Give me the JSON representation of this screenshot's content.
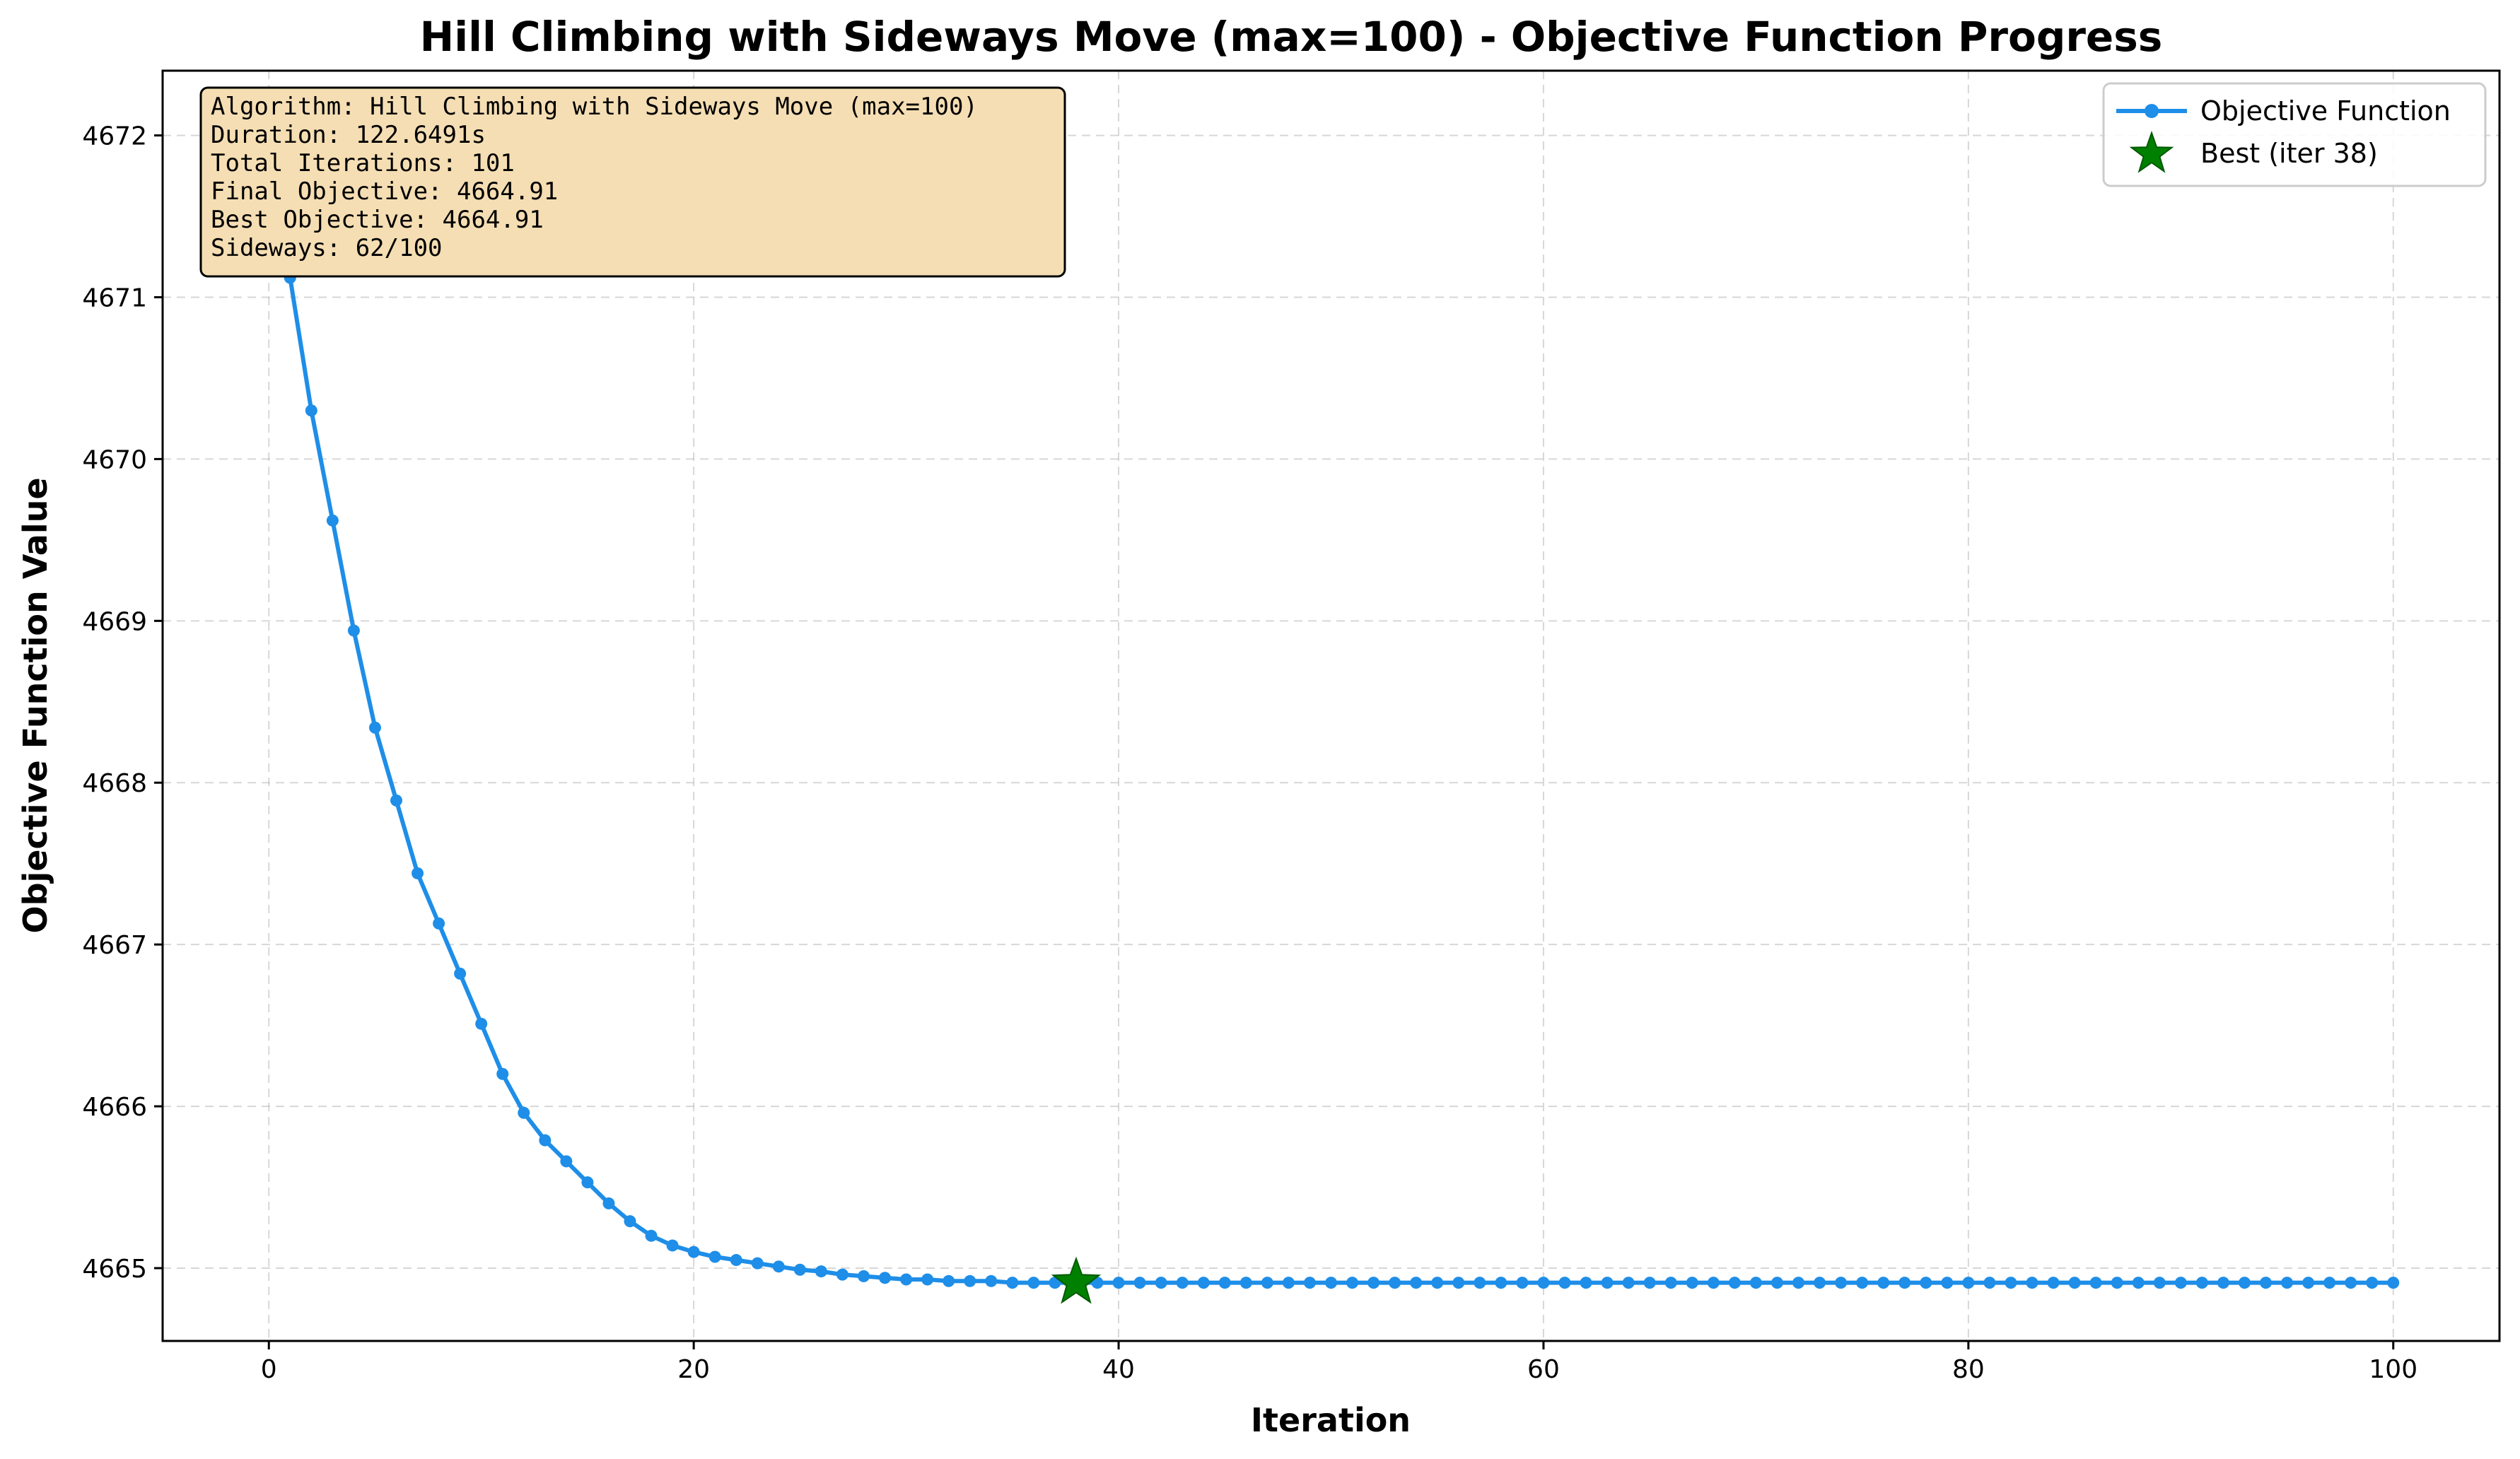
{
  "chart_data": {
    "type": "line",
    "title": "Hill Climbing with Sideways Move (max=100) - Objective Function Progress",
    "xlabel": "Iteration",
    "ylabel": "Objective Function Value",
    "xlim": [
      -5,
      105
    ],
    "ylim": [
      4664.55,
      4672.4
    ],
    "x_ticks": [
      0,
      20,
      40,
      60,
      80,
      100
    ],
    "y_ticks": [
      4665,
      4666,
      4667,
      4668,
      4669,
      4670,
      4671,
      4672
    ],
    "grid": true,
    "legend_position": "top-right",
    "series": [
      {
        "name": "Objective Function",
        "color": "#1e8ee8",
        "marker": "circle",
        "x": [
          0,
          1,
          2,
          3,
          4,
          5,
          6,
          7,
          8,
          9,
          10,
          11,
          12,
          13,
          14,
          15,
          16,
          17,
          18,
          19,
          20,
          21,
          22,
          23,
          24,
          25,
          26,
          27,
          28,
          29,
          30,
          31,
          32,
          33,
          34,
          35,
          36,
          37,
          38,
          39,
          40,
          41,
          42,
          43,
          44,
          45,
          46,
          47,
          48,
          49,
          50,
          51,
          52,
          53,
          54,
          55,
          56,
          57,
          58,
          59,
          60,
          61,
          62,
          63,
          64,
          65,
          66,
          67,
          68,
          69,
          70,
          71,
          72,
          73,
          74,
          75,
          76,
          77,
          78,
          79,
          80,
          81,
          82,
          83,
          84,
          85,
          86,
          87,
          88,
          89,
          90,
          91,
          92,
          93,
          94,
          95,
          96,
          97,
          98,
          99,
          100
        ],
        "values": [
          4672.05,
          4671.12,
          4670.3,
          4669.62,
          4668.94,
          4668.34,
          4667.89,
          4667.44,
          4667.13,
          4666.82,
          4666.51,
          4666.2,
          4665.96,
          4665.79,
          4665.66,
          4665.53,
          4665.4,
          4665.29,
          4665.2,
          4665.14,
          4665.1,
          4665.07,
          4665.05,
          4665.03,
          4665.01,
          4664.99,
          4664.98,
          4664.96,
          4664.95,
          4664.94,
          4664.93,
          4664.93,
          4664.92,
          4664.92,
          4664.92,
          4664.91,
          4664.91,
          4664.91,
          4664.91,
          4664.91,
          4664.91,
          4664.91,
          4664.91,
          4664.91,
          4664.91,
          4664.91,
          4664.91,
          4664.91,
          4664.91,
          4664.91,
          4664.91,
          4664.91,
          4664.91,
          4664.91,
          4664.91,
          4664.91,
          4664.91,
          4664.91,
          4664.91,
          4664.91,
          4664.91,
          4664.91,
          4664.91,
          4664.91,
          4664.91,
          4664.91,
          4664.91,
          4664.91,
          4664.91,
          4664.91,
          4664.91,
          4664.91,
          4664.91,
          4664.91,
          4664.91,
          4664.91,
          4664.91,
          4664.91,
          4664.91,
          4664.91,
          4664.91,
          4664.91,
          4664.91,
          4664.91,
          4664.91,
          4664.91,
          4664.91,
          4664.91,
          4664.91,
          4664.91,
          4664.91,
          4664.91,
          4664.91,
          4664.91,
          4664.91,
          4664.91,
          4664.91,
          4664.91,
          4664.91,
          4664.91,
          4664.91
        ]
      },
      {
        "name": "Best (iter 38)",
        "color": "#008000",
        "marker": "star",
        "x": [
          38
        ],
        "values": [
          4664.91
        ]
      }
    ],
    "info_box": {
      "lines": [
        "Algorithm: Hill Climbing with Sideways Move (max=100)",
        "Duration: 122.6491s",
        "Total Iterations: 101",
        "Final Objective: 4664.91",
        "Best Objective: 4664.91",
        "Sideways: 62/100"
      ],
      "background": "#f5deb3"
    }
  }
}
